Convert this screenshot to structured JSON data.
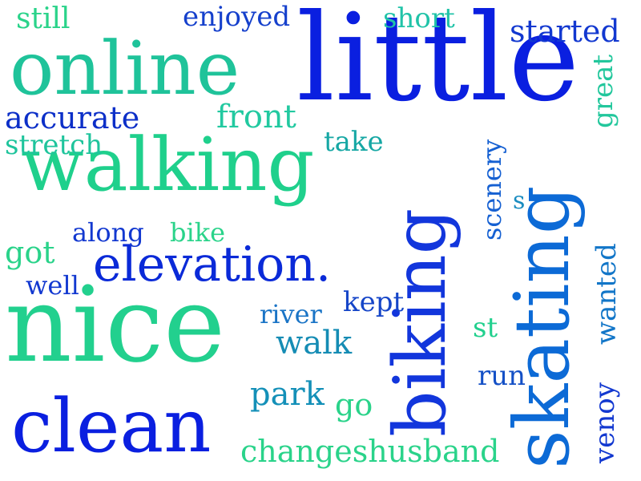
{
  "words": [
    {
      "text": "little",
      "color": "#0a1fe0"
    },
    {
      "text": "online",
      "color": "#1fc39a"
    },
    {
      "text": "walking",
      "color": "#1fd08c"
    },
    {
      "text": "nice",
      "color": "#22d08e"
    },
    {
      "text": "clean",
      "color": "#0a1fe0"
    },
    {
      "text": "elevation.",
      "color": "#0a2ad8"
    },
    {
      "text": "biking",
      "color": "#1236dc"
    },
    {
      "text": "skating",
      "color": "#0c6ad6"
    },
    {
      "text": "still",
      "color": "#2ad38a"
    },
    {
      "text": "enjoyed",
      "color": "#1540cc"
    },
    {
      "text": "short",
      "color": "#20c3a8"
    },
    {
      "text": "started",
      "color": "#1238d0"
    },
    {
      "text": "accurate",
      "color": "#0c2fc8"
    },
    {
      "text": "front",
      "color": "#22c9a0"
    },
    {
      "text": "great",
      "color": "#22c79c"
    },
    {
      "text": "stretch",
      "color": "#1fc49c"
    },
    {
      "text": "take",
      "color": "#16a7a4"
    },
    {
      "text": "scenery",
      "color": "#1560d2"
    },
    {
      "text": "s",
      "color": "#1a8cc0"
    },
    {
      "text": "along",
      "color": "#1238d0"
    },
    {
      "text": "bike",
      "color": "#2ad38a"
    },
    {
      "text": "got",
      "color": "#2ad38a"
    },
    {
      "text": "well",
      "color": "#1238d0"
    },
    {
      "text": "wanted",
      "color": "#1276c8"
    },
    {
      "text": "river",
      "color": "#1a74c6"
    },
    {
      "text": "kept",
      "color": "#1545c8"
    },
    {
      "text": "walk",
      "color": "#158cb4"
    },
    {
      "text": "st",
      "color": "#22d08e"
    },
    {
      "text": "run",
      "color": "#1450c6"
    },
    {
      "text": "venoy",
      "color": "#1238d0"
    },
    {
      "text": "park",
      "color": "#1490b8"
    },
    {
      "text": "go",
      "color": "#2ad38a"
    },
    {
      "text": "changeshusband",
      "color": "#2ad38a"
    }
  ]
}
